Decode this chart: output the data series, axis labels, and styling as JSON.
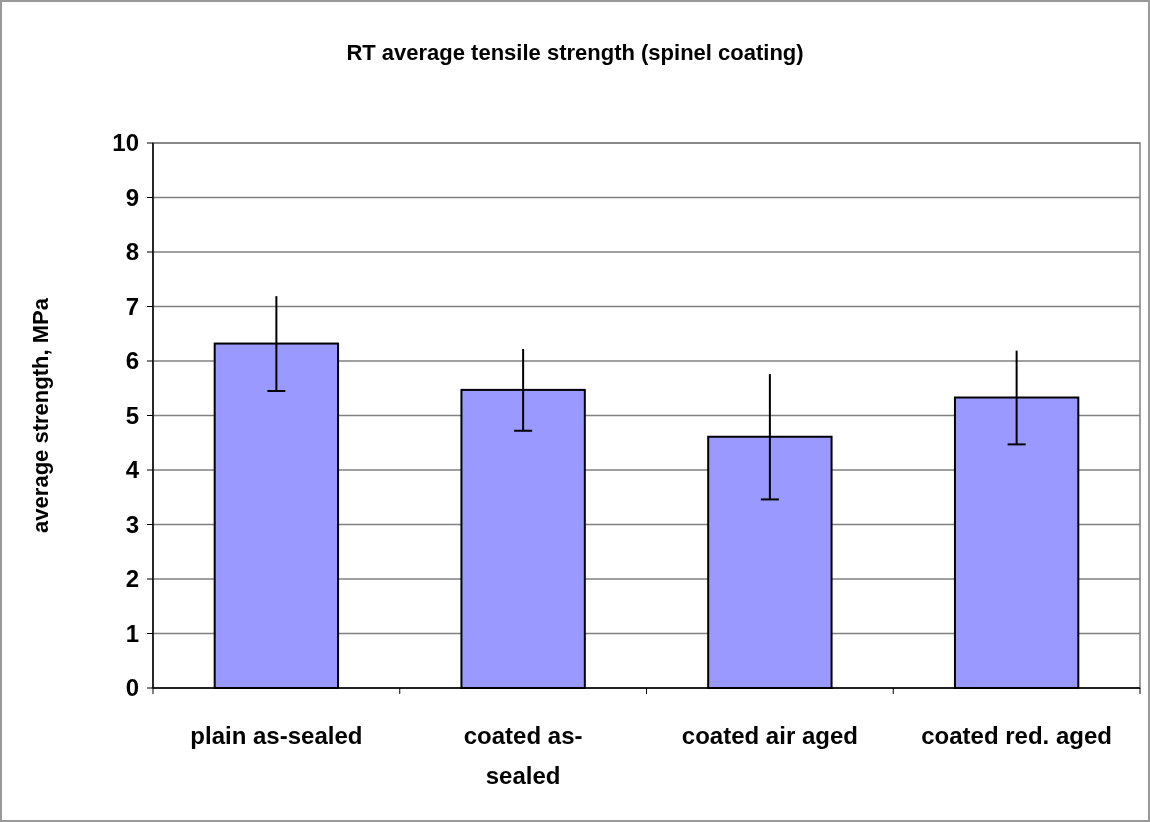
{
  "chart_data": {
    "type": "bar",
    "title": "RT average tensile strength (spinel coating)",
    "ylabel": "average strength, MPa",
    "categories": [
      "plain as-sealed",
      "coated as-sealed",
      "coated air aged",
      "coated red. aged"
    ],
    "values": [
      6.32,
      5.47,
      4.61,
      5.33
    ],
    "errors": [
      0.87,
      0.75,
      1.15,
      0.86
    ],
    "color": "#9999ff",
    "ylim": [
      0,
      10
    ],
    "yticks": [
      0,
      1,
      2,
      3,
      4,
      5,
      6,
      7,
      8,
      9,
      10
    ],
    "grid": "y"
  }
}
